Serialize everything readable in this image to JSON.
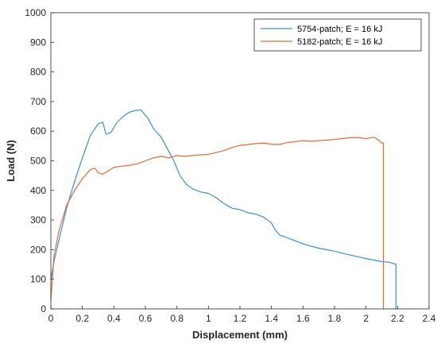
{
  "chart_data": {
    "type": "line",
    "title": "",
    "xlabel": "Displacement (mm)",
    "ylabel": "Load (N)",
    "xlim": [
      0,
      2.4
    ],
    "ylim": [
      0,
      1000
    ],
    "xticks": [
      "0",
      "0.2",
      "0.4",
      "0.6",
      "0.8",
      "1",
      "1.2",
      "1.4",
      "1.6",
      "1.8",
      "2",
      "2.2",
      "2.4"
    ],
    "yticks": [
      "0",
      "100",
      "200",
      "300",
      "400",
      "500",
      "600",
      "700",
      "800",
      "900",
      "1000"
    ],
    "grid": false,
    "legend_position": "top-right",
    "series": [
      {
        "name": "5754-patch; E = 16 kJ",
        "color": "#3a8fd0",
        "x": [
          0.0,
          0.02,
          0.05,
          0.1,
          0.15,
          0.2,
          0.25,
          0.3,
          0.33,
          0.35,
          0.38,
          0.42,
          0.46,
          0.5,
          0.54,
          0.57,
          0.59,
          0.62,
          0.65,
          0.7,
          0.75,
          0.78,
          0.82,
          0.86,
          0.9,
          0.95,
          1.0,
          1.05,
          1.1,
          1.15,
          1.2,
          1.25,
          1.3,
          1.35,
          1.4,
          1.42,
          1.45,
          1.5,
          1.55,
          1.6,
          1.65,
          1.7,
          1.75,
          1.8,
          1.85,
          1.9,
          1.95,
          2.0,
          2.05,
          2.1,
          2.15,
          2.18,
          2.19,
          2.19
        ],
        "y": [
          100,
          160,
          230,
          340,
          430,
          510,
          585,
          625,
          630,
          590,
          595,
          630,
          650,
          665,
          670,
          672,
          660,
          640,
          610,
          580,
          530,
          500,
          450,
          420,
          405,
          395,
          390,
          375,
          355,
          340,
          335,
          325,
          320,
          310,
          290,
          270,
          250,
          240,
          230,
          220,
          212,
          205,
          200,
          195,
          188,
          182,
          176,
          170,
          165,
          160,
          157,
          152,
          152,
          0
        ]
      },
      {
        "name": "5182-patch; E = 16 kJ",
        "color": "#e06a3a",
        "x": [
          0.0,
          0.02,
          0.05,
          0.1,
          0.15,
          0.2,
          0.25,
          0.28,
          0.3,
          0.33,
          0.36,
          0.4,
          0.45,
          0.5,
          0.55,
          0.6,
          0.65,
          0.7,
          0.75,
          0.8,
          0.85,
          0.9,
          0.95,
          1.0,
          1.05,
          1.1,
          1.15,
          1.2,
          1.25,
          1.3,
          1.35,
          1.4,
          1.45,
          1.5,
          1.55,
          1.6,
          1.65,
          1.7,
          1.75,
          1.8,
          1.85,
          1.9,
          1.95,
          2.0,
          2.05,
          2.08,
          2.1,
          2.11,
          2.11
        ],
        "y": [
          30,
          180,
          260,
          350,
          400,
          440,
          470,
          475,
          460,
          455,
          465,
          478,
          482,
          485,
          490,
          500,
          510,
          515,
          510,
          518,
          515,
          518,
          520,
          522,
          528,
          535,
          545,
          552,
          555,
          558,
          560,
          556,
          555,
          562,
          565,
          568,
          566,
          568,
          570,
          572,
          575,
          578,
          578,
          575,
          580,
          570,
          560,
          560,
          0
        ]
      }
    ]
  }
}
